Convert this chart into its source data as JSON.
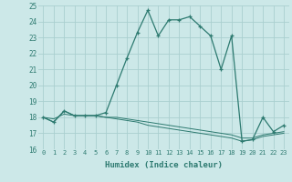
{
  "xlabel": "Humidex (Indice chaleur)",
  "x": [
    0,
    1,
    2,
    3,
    4,
    5,
    6,
    7,
    8,
    9,
    10,
    11,
    12,
    13,
    14,
    15,
    16,
    17,
    18,
    19,
    20,
    21,
    22,
    23
  ],
  "line1": [
    18.0,
    17.7,
    18.4,
    18.1,
    18.1,
    18.1,
    18.3,
    20.0,
    21.7,
    23.3,
    24.7,
    23.1,
    24.1,
    24.1,
    24.3,
    23.7,
    23.1,
    21.0,
    23.1,
    16.5,
    16.6,
    18.0,
    17.1,
    17.5
  ],
  "line2": [
    18.0,
    17.7,
    18.4,
    18.1,
    18.1,
    18.1,
    18.0,
    17.9,
    17.8,
    17.7,
    17.5,
    17.4,
    17.3,
    17.2,
    17.1,
    17.0,
    16.9,
    16.8,
    16.7,
    16.5,
    16.6,
    16.8,
    16.9,
    17.0
  ],
  "line3": [
    18.0,
    17.9,
    18.2,
    18.1,
    18.1,
    18.1,
    18.0,
    18.0,
    17.9,
    17.8,
    17.7,
    17.6,
    17.5,
    17.4,
    17.3,
    17.2,
    17.1,
    17.0,
    16.9,
    16.7,
    16.7,
    16.9,
    17.0,
    17.1
  ],
  "line_color": "#2d7a70",
  "bg_color": "#cce8e8",
  "grid_color": "#aacfcf",
  "ylim": [
    16,
    25
  ],
  "yticks": [
    16,
    17,
    18,
    19,
    20,
    21,
    22,
    23,
    24,
    25
  ],
  "xlim": [
    -0.5,
    23.5
  ]
}
